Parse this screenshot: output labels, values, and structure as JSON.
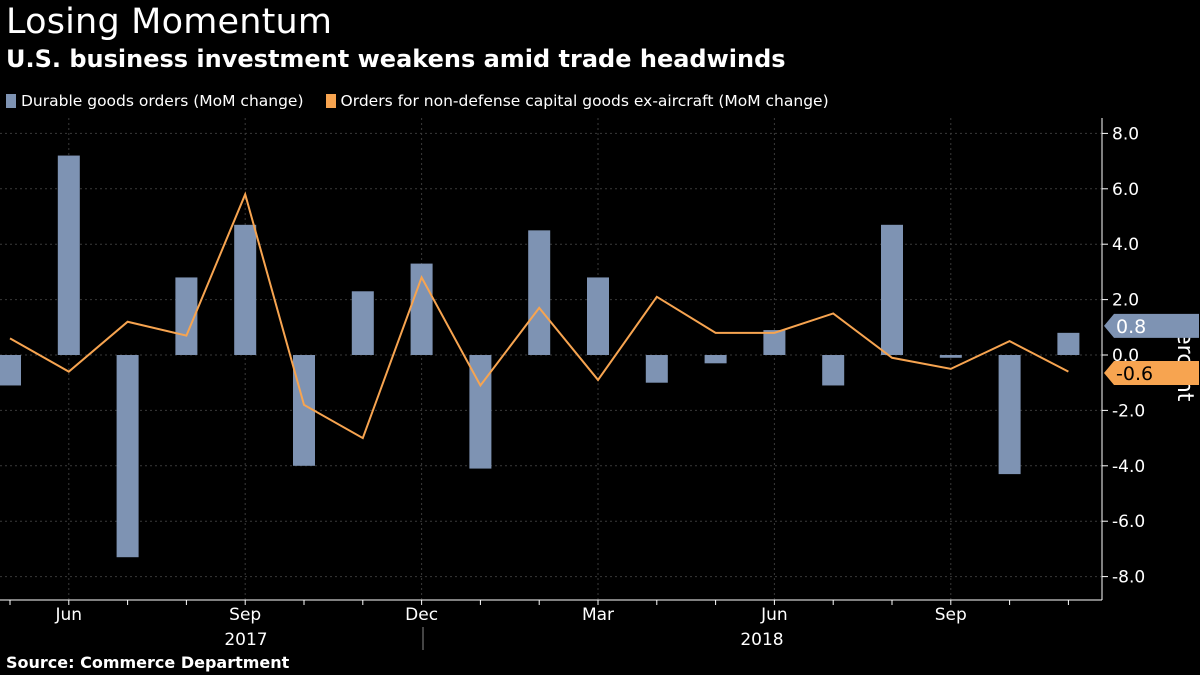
{
  "header": {
    "title": "Losing Momentum",
    "subtitle": "U.S. business investment weakens amid trade headwinds"
  },
  "legend": {
    "durable_label": "Durable goods orders (MoM change)",
    "capex_label": "Orders for non-defense capital goods ex-aircraft (MoM change)"
  },
  "footer": {
    "source": "Source: Commerce Department"
  },
  "colors": {
    "background": "#000000",
    "durable": "#7e93b3",
    "capex": "#f7a450",
    "grid": "#3a3a3a",
    "axis": "#ffffff"
  },
  "chart_data": {
    "type": "bar",
    "title": "Losing Momentum",
    "subtitle": "U.S. business investment weakens amid trade headwinds",
    "x": [
      "2017-05",
      "2017-06",
      "2017-07",
      "2017-08",
      "2017-09",
      "2017-10",
      "2017-11",
      "2017-12",
      "2018-01",
      "2018-02",
      "2018-03",
      "2018-04",
      "2018-05",
      "2018-06",
      "2018-07",
      "2018-08",
      "2018-09",
      "2018-10",
      "2018-11"
    ],
    "x_tick_labels": [
      "Jun",
      "Sep",
      "Dec",
      "Mar",
      "Jun",
      "Sep"
    ],
    "x_year_labels": [
      "2017",
      "2018"
    ],
    "ylabel": "Percent",
    "ylim": [
      -9.0,
      8.5
    ],
    "y_ticks": [
      "8.0",
      "6.0",
      "4.0",
      "2.0",
      "0.0",
      "-2.0",
      "-4.0",
      "-6.0",
      "-8.0"
    ],
    "grid": true,
    "legend_position": "top-left",
    "y_axis_side": "right",
    "series": [
      {
        "name": "Durable goods orders (MoM change)",
        "kind": "bar",
        "values": [
          -1.1,
          7.2,
          -7.3,
          2.8,
          4.7,
          -4.0,
          2.3,
          3.3,
          -4.1,
          4.5,
          2.8,
          -1.0,
          -0.3,
          0.9,
          -1.1,
          4.7,
          -0.1,
          -4.3,
          0.8
        ]
      },
      {
        "name": "Orders for non-defense capital goods ex-aircraft (MoM change)",
        "kind": "line",
        "values": [
          0.6,
          -0.6,
          1.2,
          0.7,
          5.8,
          -1.8,
          -3.0,
          2.8,
          -1.1,
          1.7,
          -0.9,
          2.1,
          0.8,
          0.8,
          1.5,
          -0.1,
          -0.5,
          0.5,
          -0.6
        ]
      }
    ],
    "end_labels": {
      "durable": "0.8",
      "capex": "-0.6"
    }
  }
}
